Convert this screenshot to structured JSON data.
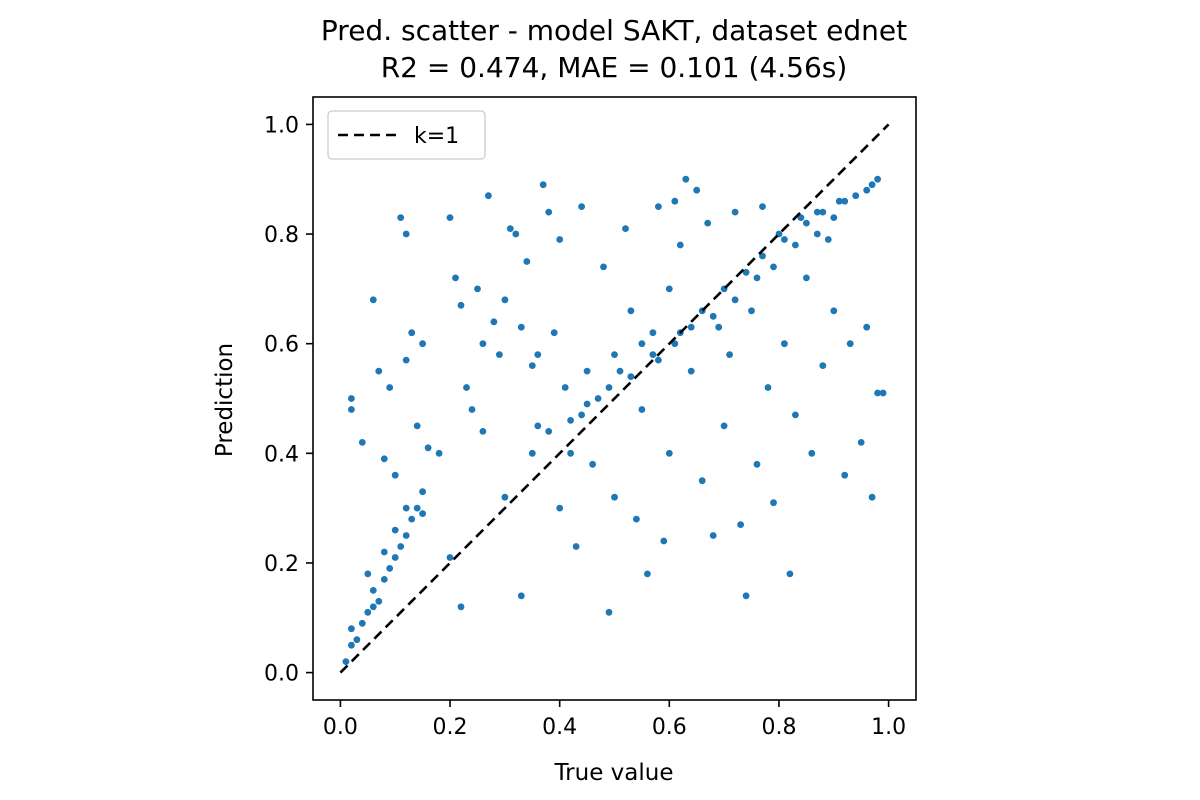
{
  "chart_data": {
    "type": "scatter",
    "title": "Pred. scatter - model SAKT, dataset ednet",
    "subtitle": "R2 = 0.474, MAE = 0.101 (4.56s)",
    "xlabel": "True value",
    "ylabel": "Prediction",
    "xlim": [
      -0.05,
      1.05
    ],
    "ylim": [
      -0.05,
      1.05
    ],
    "xticks": [
      "0.0",
      "0.2",
      "0.4",
      "0.6",
      "0.8",
      "1.0"
    ],
    "yticks": [
      "0.0",
      "0.2",
      "0.4",
      "0.6",
      "0.8",
      "1.0"
    ],
    "grid": false,
    "legend": {
      "position": "top-left",
      "entries": [
        {
          "label": "k=1",
          "style": "dashed",
          "color": "#000000"
        }
      ]
    },
    "colors": {
      "points": "#1f77b4",
      "reference_line": "#000000"
    },
    "reference_line": {
      "x": [
        0.0,
        1.0
      ],
      "y": [
        0.0,
        1.0
      ]
    },
    "series": [
      {
        "points": [
          [
            0.01,
            0.02
          ],
          [
            0.02,
            0.05
          ],
          [
            0.02,
            0.08
          ],
          [
            0.03,
            0.06
          ],
          [
            0.04,
            0.09
          ],
          [
            0.05,
            0.11
          ],
          [
            0.05,
            0.18
          ],
          [
            0.06,
            0.12
          ],
          [
            0.06,
            0.15
          ],
          [
            0.07,
            0.13
          ],
          [
            0.08,
            0.17
          ],
          [
            0.08,
            0.22
          ],
          [
            0.09,
            0.19
          ],
          [
            0.1,
            0.21
          ],
          [
            0.1,
            0.26
          ],
          [
            0.11,
            0.23
          ],
          [
            0.12,
            0.25
          ],
          [
            0.12,
            0.3
          ],
          [
            0.13,
            0.28
          ],
          [
            0.14,
            0.3
          ],
          [
            0.15,
            0.33
          ],
          [
            0.15,
            0.29
          ],
          [
            0.02,
            0.5
          ],
          [
            0.02,
            0.48
          ],
          [
            0.06,
            0.68
          ],
          [
            0.07,
            0.55
          ],
          [
            0.04,
            0.42
          ],
          [
            0.08,
            0.39
          ],
          [
            0.09,
            0.52
          ],
          [
            0.1,
            0.36
          ],
          [
            0.11,
            0.83
          ],
          [
            0.12,
            0.8
          ],
          [
            0.12,
            0.57
          ],
          [
            0.13,
            0.62
          ],
          [
            0.14,
            0.45
          ],
          [
            0.15,
            0.6
          ],
          [
            0.16,
            0.41
          ],
          [
            0.18,
            0.4
          ],
          [
            0.2,
            0.21
          ],
          [
            0.2,
            0.83
          ],
          [
            0.21,
            0.72
          ],
          [
            0.22,
            0.67
          ],
          [
            0.22,
            0.12
          ],
          [
            0.23,
            0.52
          ],
          [
            0.24,
            0.48
          ],
          [
            0.25,
            0.7
          ],
          [
            0.26,
            0.44
          ],
          [
            0.27,
            0.87
          ],
          [
            0.28,
            0.64
          ],
          [
            0.3,
            0.68
          ],
          [
            0.3,
            0.32
          ],
          [
            0.31,
            0.81
          ],
          [
            0.32,
            0.8
          ],
          [
            0.33,
            0.14
          ],
          [
            0.34,
            0.75
          ],
          [
            0.35,
            0.56
          ],
          [
            0.36,
            0.58
          ],
          [
            0.37,
            0.89
          ],
          [
            0.38,
            0.84
          ],
          [
            0.39,
            0.62
          ],
          [
            0.4,
            0.79
          ],
          [
            0.4,
            0.3
          ],
          [
            0.42,
            0.4
          ],
          [
            0.43,
            0.23
          ],
          [
            0.44,
            0.85
          ],
          [
            0.45,
            0.55
          ],
          [
            0.46,
            0.38
          ],
          [
            0.48,
            0.74
          ],
          [
            0.49,
            0.11
          ],
          [
            0.5,
            0.58
          ],
          [
            0.5,
            0.32
          ],
          [
            0.52,
            0.81
          ],
          [
            0.53,
            0.66
          ],
          [
            0.54,
            0.28
          ],
          [
            0.55,
            0.48
          ],
          [
            0.56,
            0.18
          ],
          [
            0.57,
            0.62
          ],
          [
            0.58,
            0.85
          ],
          [
            0.59,
            0.24
          ],
          [
            0.6,
            0.7
          ],
          [
            0.6,
            0.4
          ],
          [
            0.61,
            0.86
          ],
          [
            0.62,
            0.78
          ],
          [
            0.63,
            0.9
          ],
          [
            0.64,
            0.55
          ],
          [
            0.65,
            0.88
          ],
          [
            0.66,
            0.35
          ],
          [
            0.67,
            0.82
          ],
          [
            0.68,
            0.25
          ],
          [
            0.69,
            0.63
          ],
          [
            0.7,
            0.45
          ],
          [
            0.71,
            0.58
          ],
          [
            0.72,
            0.84
          ],
          [
            0.73,
            0.27
          ],
          [
            0.74,
            0.14
          ],
          [
            0.75,
            0.66
          ],
          [
            0.76,
            0.38
          ],
          [
            0.77,
            0.85
          ],
          [
            0.78,
            0.52
          ],
          [
            0.79,
            0.31
          ],
          [
            0.8,
            0.8
          ],
          [
            0.81,
            0.6
          ],
          [
            0.82,
            0.18
          ],
          [
            0.83,
            0.47
          ],
          [
            0.84,
            0.83
          ],
          [
            0.85,
            0.72
          ],
          [
            0.86,
            0.4
          ],
          [
            0.87,
            0.84
          ],
          [
            0.88,
            0.56
          ],
          [
            0.89,
            0.79
          ],
          [
            0.9,
            0.66
          ],
          [
            0.91,
            0.86
          ],
          [
            0.92,
            0.36
          ],
          [
            0.93,
            0.6
          ],
          [
            0.94,
            0.87
          ],
          [
            0.95,
            0.42
          ],
          [
            0.96,
            0.88
          ],
          [
            0.96,
            0.63
          ],
          [
            0.97,
            0.89
          ],
          [
            0.97,
            0.32
          ],
          [
            0.98,
            0.9
          ],
          [
            0.98,
            0.51
          ],
          [
            0.99,
            0.51
          ],
          [
            0.26,
            0.6
          ],
          [
            0.29,
            0.58
          ],
          [
            0.33,
            0.63
          ],
          [
            0.36,
            0.45
          ],
          [
            0.41,
            0.52
          ],
          [
            0.44,
            0.47
          ],
          [
            0.47,
            0.5
          ],
          [
            0.51,
            0.55
          ],
          [
            0.55,
            0.6
          ],
          [
            0.58,
            0.57
          ],
          [
            0.62,
            0.62
          ],
          [
            0.66,
            0.66
          ],
          [
            0.7,
            0.7
          ],
          [
            0.74,
            0.73
          ],
          [
            0.77,
            0.76
          ],
          [
            0.81,
            0.79
          ],
          [
            0.85,
            0.82
          ],
          [
            0.88,
            0.84
          ],
          [
            0.92,
            0.86
          ],
          [
            0.35,
            0.4
          ],
          [
            0.38,
            0.44
          ],
          [
            0.42,
            0.46
          ],
          [
            0.45,
            0.49
          ],
          [
            0.49,
            0.52
          ],
          [
            0.53,
            0.54
          ],
          [
            0.57,
            0.58
          ],
          [
            0.61,
            0.6
          ],
          [
            0.64,
            0.63
          ],
          [
            0.68,
            0.65
          ],
          [
            0.72,
            0.68
          ],
          [
            0.76,
            0.72
          ],
          [
            0.79,
            0.74
          ],
          [
            0.83,
            0.78
          ],
          [
            0.87,
            0.8
          ],
          [
            0.9,
            0.83
          ]
        ]
      }
    ]
  }
}
